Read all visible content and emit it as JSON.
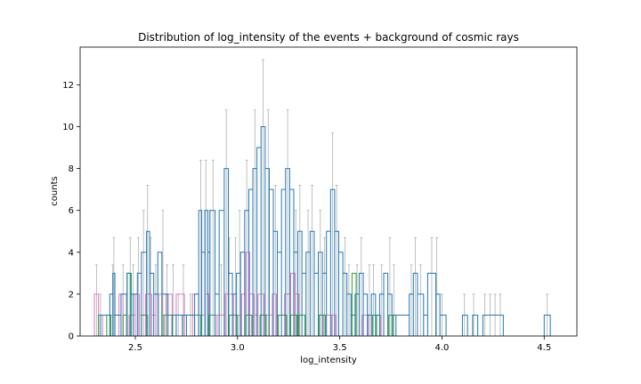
{
  "chart_data": {
    "type": "histogram-step",
    "title": "Distribution of log_intensity of the events + background of cosmic rays",
    "xlabel": "log_intensity",
    "ylabel": "counts",
    "xlim": [
      2.23,
      4.66
    ],
    "ylim": [
      0,
      13.8
    ],
    "xticks": [
      2.5,
      3.0,
      3.5,
      4.0,
      4.5
    ],
    "xtick_labels": [
      "2.5",
      "3.0",
      "3.5",
      "4.0",
      "4.5"
    ],
    "yticks": [
      0,
      2,
      4,
      6,
      8,
      10,
      12
    ],
    "ytick_labels": [
      "0",
      "2",
      "4",
      "6",
      "8",
      "10",
      "12"
    ],
    "grid": false,
    "legend": "none",
    "series": [
      {
        "color": "#1f77b4",
        "bins": [
          [
            2.33,
            2.375,
            1
          ],
          [
            2.375,
            2.39,
            2
          ],
          [
            2.39,
            2.4,
            3
          ],
          [
            2.4,
            2.43,
            1
          ],
          [
            2.43,
            2.46,
            2
          ],
          [
            2.46,
            2.475,
            3
          ],
          [
            2.475,
            2.49,
            2
          ],
          [
            2.49,
            2.51,
            2
          ],
          [
            2.51,
            2.53,
            3
          ],
          [
            2.53,
            2.555,
            4
          ],
          [
            2.555,
            2.57,
            5
          ],
          [
            2.57,
            2.59,
            3
          ],
          [
            2.59,
            2.61,
            2
          ],
          [
            2.61,
            2.63,
            4
          ],
          [
            2.63,
            2.66,
            2
          ],
          [
            2.66,
            2.68,
            1
          ],
          [
            2.68,
            2.7,
            1
          ],
          [
            2.7,
            2.73,
            1
          ],
          [
            2.73,
            2.75,
            1
          ],
          [
            2.75,
            2.79,
            1
          ],
          [
            2.79,
            2.81,
            2
          ],
          [
            2.81,
            2.825,
            6
          ],
          [
            2.825,
            2.84,
            4
          ],
          [
            2.84,
            2.855,
            6
          ],
          [
            2.855,
            2.865,
            4
          ],
          [
            2.865,
            2.89,
            6
          ],
          [
            2.89,
            2.91,
            2
          ],
          [
            2.91,
            2.935,
            6
          ],
          [
            2.935,
            2.955,
            8
          ],
          [
            2.955,
            2.975,
            3
          ],
          [
            2.975,
            2.995,
            2
          ],
          [
            2.995,
            3.015,
            3
          ],
          [
            3.015,
            3.035,
            4
          ],
          [
            3.035,
            3.055,
            6
          ],
          [
            3.055,
            3.075,
            7
          ],
          [
            3.075,
            3.095,
            8
          ],
          [
            3.095,
            3.115,
            9
          ],
          [
            3.115,
            3.135,
            10
          ],
          [
            3.135,
            3.155,
            8
          ],
          [
            3.155,
            3.175,
            7
          ],
          [
            3.175,
            3.195,
            5
          ],
          [
            3.195,
            3.215,
            4
          ],
          [
            3.215,
            3.235,
            7
          ],
          [
            3.235,
            3.255,
            8
          ],
          [
            3.255,
            3.275,
            7
          ],
          [
            3.275,
            3.295,
            4
          ],
          [
            3.295,
            3.315,
            5
          ],
          [
            3.315,
            3.335,
            3
          ],
          [
            3.335,
            3.355,
            4
          ],
          [
            3.355,
            3.375,
            5
          ],
          [
            3.375,
            3.395,
            3
          ],
          [
            3.395,
            3.415,
            4
          ],
          [
            3.415,
            3.435,
            3
          ],
          [
            3.435,
            3.455,
            5
          ],
          [
            3.455,
            3.475,
            7
          ],
          [
            3.475,
            3.495,
            5
          ],
          [
            3.495,
            3.515,
            4
          ],
          [
            3.515,
            3.535,
            3
          ],
          [
            3.535,
            3.555,
            2
          ],
          [
            3.555,
            3.575,
            1
          ],
          [
            3.575,
            3.595,
            2
          ],
          [
            3.595,
            3.615,
            3
          ],
          [
            3.615,
            3.635,
            2
          ],
          [
            3.635,
            3.655,
            1
          ],
          [
            3.655,
            3.675,
            2
          ],
          [
            3.675,
            3.695,
            1
          ],
          [
            3.695,
            3.715,
            2
          ],
          [
            3.715,
            3.735,
            3
          ],
          [
            3.735,
            3.755,
            2
          ],
          [
            3.755,
            3.775,
            1
          ],
          [
            3.775,
            3.84,
            1
          ],
          [
            3.84,
            3.86,
            2
          ],
          [
            3.86,
            3.88,
            3
          ],
          [
            3.88,
            3.91,
            2
          ],
          [
            3.91,
            3.93,
            1
          ],
          [
            3.93,
            3.97,
            3
          ],
          [
            3.97,
            3.99,
            2
          ],
          [
            3.99,
            4.02,
            1
          ]
        ]
      },
      {
        "color": "#2ca02c",
        "bins": [
          [
            2.32,
            2.36,
            1
          ],
          [
            2.36,
            2.38,
            1
          ],
          [
            2.44,
            2.46,
            1
          ],
          [
            2.46,
            2.48,
            3
          ],
          [
            2.53,
            2.56,
            1
          ],
          [
            2.64,
            2.68,
            1
          ],
          [
            2.79,
            2.82,
            1
          ],
          [
            2.86,
            2.89,
            1
          ],
          [
            2.96,
            3.0,
            1
          ],
          [
            3.04,
            3.07,
            1
          ],
          [
            3.11,
            3.14,
            1
          ],
          [
            3.2,
            3.24,
            1
          ],
          [
            3.26,
            3.29,
            1
          ],
          [
            3.3,
            3.33,
            1
          ],
          [
            3.4,
            3.43,
            1
          ],
          [
            3.56,
            3.58,
            3
          ],
          [
            3.66,
            3.68,
            1
          ],
          [
            3.74,
            3.76,
            1
          ]
        ]
      },
      {
        "color": "#e377c2",
        "bins": [
          [
            2.3,
            2.32,
            2
          ],
          [
            2.32,
            2.34,
            1
          ],
          [
            2.38,
            2.42,
            1
          ],
          [
            2.42,
            2.44,
            2
          ],
          [
            2.44,
            2.46,
            1
          ],
          [
            2.47,
            2.5,
            1
          ],
          [
            2.5,
            2.52,
            2
          ],
          [
            2.52,
            2.55,
            1
          ],
          [
            2.55,
            2.58,
            2
          ],
          [
            2.58,
            2.6,
            1
          ],
          [
            2.6,
            2.63,
            2
          ],
          [
            2.63,
            2.65,
            1
          ],
          [
            2.65,
            2.68,
            2
          ],
          [
            2.68,
            2.7,
            1
          ],
          [
            2.7,
            2.74,
            2
          ],
          [
            2.74,
            2.78,
            1
          ],
          [
            2.78,
            2.81,
            2
          ],
          [
            2.81,
            2.84,
            1
          ],
          [
            2.84,
            2.86,
            2
          ],
          [
            2.86,
            2.9,
            1
          ],
          [
            2.9,
            2.94,
            1
          ],
          [
            2.94,
            2.98,
            2
          ],
          [
            2.98,
            3.02,
            1
          ],
          [
            3.02,
            3.04,
            2
          ],
          [
            3.04,
            3.06,
            4
          ],
          [
            3.06,
            3.08,
            2
          ],
          [
            3.08,
            3.1,
            1
          ],
          [
            3.1,
            3.13,
            2
          ],
          [
            3.13,
            3.17,
            1
          ],
          [
            3.17,
            3.19,
            2
          ],
          [
            3.19,
            3.23,
            1
          ],
          [
            3.23,
            3.26,
            2
          ],
          [
            3.26,
            3.28,
            3
          ],
          [
            3.28,
            3.3,
            2
          ],
          [
            3.3,
            3.33,
            1
          ],
          [
            3.42,
            3.46,
            1
          ],
          [
            3.46,
            3.48,
            1
          ],
          [
            3.61,
            3.64,
            1
          ],
          [
            3.68,
            3.7,
            1
          ]
        ]
      }
    ],
    "error_bars": {
      "color": "#b0b0b0",
      "points": [
        [
          2.31,
          2,
          3.4
        ],
        [
          2.33,
          1,
          2.0
        ],
        [
          2.39,
          2,
          3.4
        ],
        [
          2.395,
          3,
          4.7
        ],
        [
          2.44,
          2,
          3.4
        ],
        [
          2.455,
          1,
          2.0
        ],
        [
          2.475,
          3,
          4.7
        ],
        [
          2.49,
          2,
          3.4
        ],
        [
          2.515,
          3,
          4.7
        ],
        [
          2.54,
          4,
          6.0
        ],
        [
          2.56,
          5,
          7.2
        ],
        [
          2.575,
          3,
          4.7
        ],
        [
          2.6,
          2,
          3.4
        ],
        [
          2.615,
          1,
          2.0
        ],
        [
          2.635,
          4,
          6.0
        ],
        [
          2.655,
          2,
          3.4
        ],
        [
          2.685,
          2,
          3.4
        ],
        [
          2.71,
          1,
          2.0
        ],
        [
          2.735,
          2,
          3.4
        ],
        [
          2.77,
          1,
          2.0
        ],
        [
          2.82,
          6,
          8.4
        ],
        [
          2.845,
          6,
          8.4
        ],
        [
          2.865,
          4,
          6.0
        ],
        [
          2.88,
          6,
          8.4
        ],
        [
          2.92,
          2,
          3.4
        ],
        [
          2.945,
          8,
          10.8
        ],
        [
          2.96,
          3,
          4.7
        ],
        [
          2.99,
          3,
          4.7
        ],
        [
          3.01,
          4,
          6.0
        ],
        [
          3.045,
          6,
          8.4
        ],
        [
          3.085,
          8,
          10.8
        ],
        [
          3.125,
          10,
          13.2
        ],
        [
          3.15,
          8,
          10.8
        ],
        [
          3.185,
          5,
          7.2
        ],
        [
          3.245,
          8,
          10.8
        ],
        [
          3.285,
          4,
          6.0
        ],
        [
          3.305,
          5,
          7.2
        ],
        [
          3.345,
          4,
          6.0
        ],
        [
          3.365,
          5,
          7.2
        ],
        [
          3.405,
          4,
          6.0
        ],
        [
          3.425,
          3,
          4.7
        ],
        [
          3.465,
          7,
          9.7
        ],
        [
          3.485,
          5,
          7.2
        ],
        [
          3.525,
          3,
          4.7
        ],
        [
          3.545,
          2,
          3.4
        ],
        [
          3.585,
          2,
          3.4
        ],
        [
          3.605,
          3,
          4.7
        ],
        [
          3.645,
          2,
          3.4
        ],
        [
          3.665,
          2,
          3.4
        ],
        [
          3.705,
          2,
          3.4
        ],
        [
          3.745,
          3,
          4.7
        ],
        [
          3.765,
          2,
          3.4
        ],
        [
          3.85,
          2,
          3.4
        ],
        [
          3.87,
          3,
          4.7
        ],
        [
          3.895,
          2,
          3.4
        ],
        [
          3.95,
          3,
          4.7
        ],
        [
          3.975,
          3,
          4.7
        ],
        [
          4.0,
          1,
          2.0
        ],
        [
          4.11,
          1,
          2.0
        ],
        [
          4.155,
          1,
          2.0
        ],
        [
          4.21,
          1,
          2.0
        ],
        [
          4.235,
          1,
          2.0
        ],
        [
          4.26,
          1,
          2.0
        ],
        [
          4.285,
          1,
          2.0
        ],
        [
          4.515,
          1,
          2.0
        ]
      ]
    },
    "extra_steps": [
      [
        4.1,
        4.125,
        1
      ],
      [
        4.15,
        4.175,
        1
      ],
      [
        4.2,
        4.3,
        1
      ],
      [
        4.5,
        4.53,
        1
      ]
    ]
  }
}
